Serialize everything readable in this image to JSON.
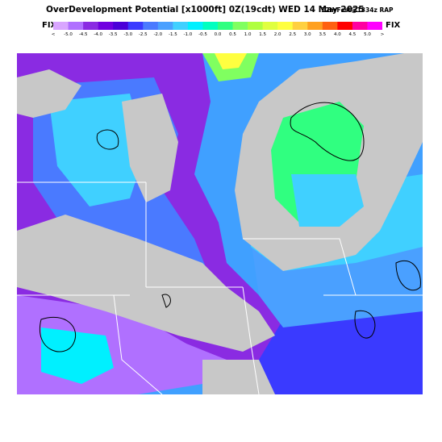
{
  "header": {
    "title": "OverDevelopment Potential [x1000ft] 0Z(19cdt) WED 14 May 2025",
    "forecast_info": "12hrFcst@1334z RAP"
  },
  "legend": {
    "left_label": "FIX",
    "right_label": "FIX",
    "tick_labels": [
      "<",
      "-5.0",
      "-4.5",
      "-4.0",
      "-3.5",
      "-3.0",
      "-2.5",
      "-2.0",
      "-1.5",
      "-1.0",
      "-0.5",
      "0.0",
      "0.5",
      "1.0",
      "1.5",
      "2.0",
      "2.5",
      "3.0",
      "3.5",
      "4.0",
      "4.5",
      "5.0",
      ">"
    ],
    "colors": [
      "#d9a6ff",
      "#b070ff",
      "#8a2be2",
      "#7000e0",
      "#4b00d8",
      "#3a3aff",
      "#4a7aff",
      "#4aa0ff",
      "#40d0ff",
      "#00f0ff",
      "#00ffc0",
      "#30ff80",
      "#80ff60",
      "#b0ff40",
      "#e0ff40",
      "#ffff40",
      "#ffd040",
      "#ffa020",
      "#ff6010",
      "#ff0000",
      "#ff00a0",
      "#ff00ff"
    ]
  },
  "map": {
    "land_gray": "#c8c8c8",
    "lake_outline": "#ffffff",
    "base_color": "#40a0ff"
  }
}
